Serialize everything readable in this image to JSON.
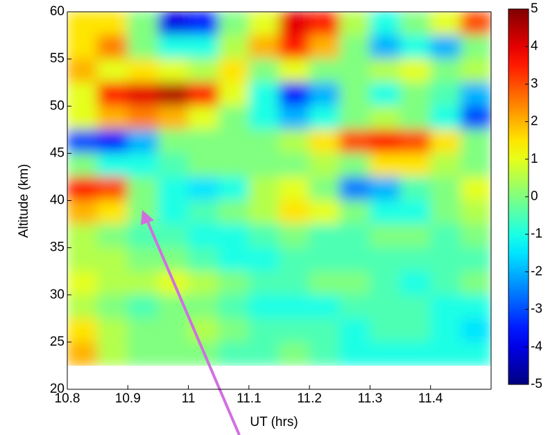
{
  "chart_data": {
    "type": "heatmap",
    "x_label": "UT (hrs)",
    "y_label": "Altitude (km)",
    "xlim": [
      10.8,
      11.5
    ],
    "ylim": [
      20,
      60
    ],
    "xticks": [
      10.8,
      10.9,
      11,
      11.1,
      11.2,
      11.3,
      11.4
    ],
    "yticks": [
      20,
      25,
      30,
      35,
      40,
      45,
      50,
      55,
      60
    ],
    "colormap": "jet",
    "clim": [
      -5,
      5
    ],
    "cticks": [
      -5,
      -4,
      -3,
      -2,
      -1,
      0,
      1,
      2,
      3,
      4,
      5
    ],
    "x": [
      10.825,
      10.875,
      10.925,
      10.975,
      11.025,
      11.075,
      11.125,
      11.175,
      11.225,
      11.275,
      11.325,
      11.375,
      11.425,
      11.475
    ],
    "y": [
      58.75,
      56.25,
      53.75,
      51.25,
      48.75,
      46.25,
      43.75,
      41.25,
      38.75,
      36.25,
      33.75,
      31.25,
      28.75,
      26.25,
      23.75
    ],
    "z": [
      [
        1.5,
        1.5,
        0,
        -4,
        -3.5,
        0,
        1,
        4,
        3.5,
        0.5,
        -1,
        0,
        1,
        3
      ],
      [
        1.5,
        2.5,
        0,
        -1,
        -1,
        0.5,
        2,
        3.5,
        2,
        0,
        -2,
        -1,
        -2,
        0
      ],
      [
        2,
        1,
        1.5,
        1,
        0.5,
        1.5,
        0,
        1,
        0,
        0,
        0.5,
        1,
        0,
        0.5
      ],
      [
        1,
        3.5,
        4,
        4.5,
        3.5,
        1,
        -1,
        -3.5,
        -2,
        0,
        -1,
        0,
        -0.5,
        -2
      ],
      [
        1,
        2,
        2.5,
        2,
        1,
        0,
        -1,
        -2,
        -1,
        0,
        0.5,
        0,
        -1,
        -3
      ],
      [
        -3,
        -3.5,
        -2,
        0,
        0,
        0,
        0,
        0.5,
        1.5,
        3,
        3.5,
        3,
        1.5,
        0
      ],
      [
        0,
        -1,
        -1,
        -0.5,
        0,
        0,
        0,
        0,
        0.5,
        0,
        1.5,
        1.5,
        0.5,
        0
      ],
      [
        3.5,
        3,
        0,
        -1,
        -1.5,
        -1,
        0.5,
        1,
        0,
        -2.5,
        -2,
        -0.5,
        0,
        1
      ],
      [
        2,
        1.5,
        0,
        -1,
        -0.5,
        0,
        0.5,
        1.5,
        1,
        0,
        -1,
        -1,
        0,
        0.5
      ],
      [
        0.5,
        0,
        -0.5,
        -0.5,
        -1,
        -1,
        -0.5,
        0,
        -0.5,
        -0.5,
        0,
        0,
        -0.5,
        0
      ],
      [
        0.5,
        0.5,
        0,
        0,
        -0.5,
        -1,
        -1,
        -0.5,
        -0.5,
        -0.5,
        -0.5,
        -0.5,
        -0.5,
        -0.5
      ],
      [
        1,
        0.5,
        0.5,
        1,
        0.5,
        0,
        -0.5,
        -0.5,
        0,
        0,
        -0.5,
        -1,
        -0.5,
        0
      ],
      [
        0.5,
        0,
        -0.5,
        0,
        0,
        -0.5,
        -1,
        -1,
        -1,
        -0.5,
        -0.5,
        -0.5,
        -1,
        -1
      ],
      [
        1.5,
        0.5,
        0,
        0,
        0.5,
        0,
        -0.5,
        -0.5,
        -0.5,
        -1,
        -0.5,
        -0.5,
        -1,
        -1.5
      ],
      [
        2,
        0.5,
        0,
        0,
        0,
        -0.5,
        -0.5,
        0,
        -0.5,
        -1,
        -1,
        -1,
        -1,
        -1
      ]
    ]
  }
}
